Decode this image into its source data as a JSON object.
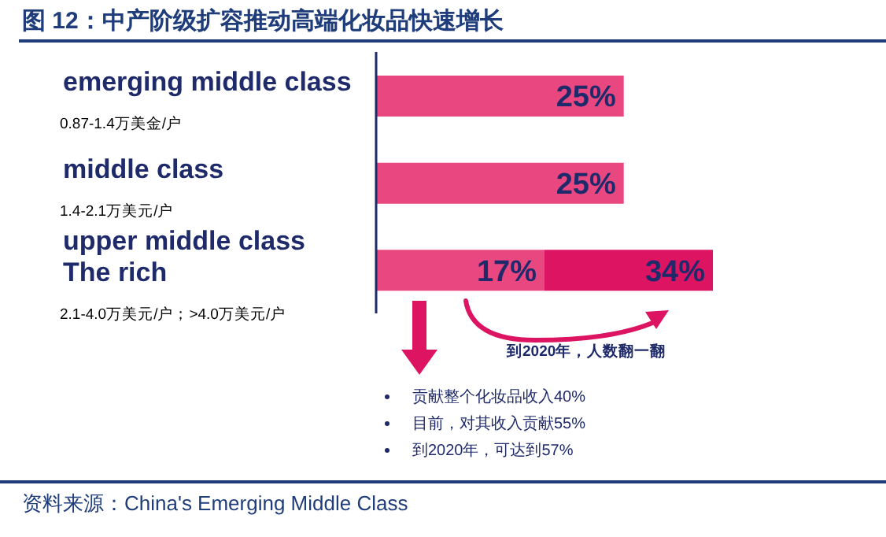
{
  "chart_data": {
    "type": "bar",
    "orientation": "horizontal",
    "stacked": true,
    "title": "图 12：中产阶级扩容推动高端化妆品快速增长",
    "categories": [
      "emerging middle class\n0.87-1.4万美金/户",
      "middle class\n1.4-2.1万美元/户",
      "upper middle class\nThe rich\n2.1-4.0万美元/户；>4.0万美元/户"
    ],
    "series": [
      {
        "color": "#e8477f",
        "values": [
          25,
          25,
          17
        ],
        "value_labels": [
          "25%",
          "25%",
          "17%"
        ]
      },
      {
        "color": "#dc1462",
        "values": [
          null,
          null,
          17
        ]
      }
    ],
    "totals": [
      null,
      null,
      "34%"
    ],
    "annotations": [
      "到2020年，人数翻一翻",
      "贡献整个化妆品收入40%",
      "目前，对其收入贡献55%",
      "到2020年，可达到57%",
      "资料来源：China's Emerging Middle Class"
    ]
  }
}
